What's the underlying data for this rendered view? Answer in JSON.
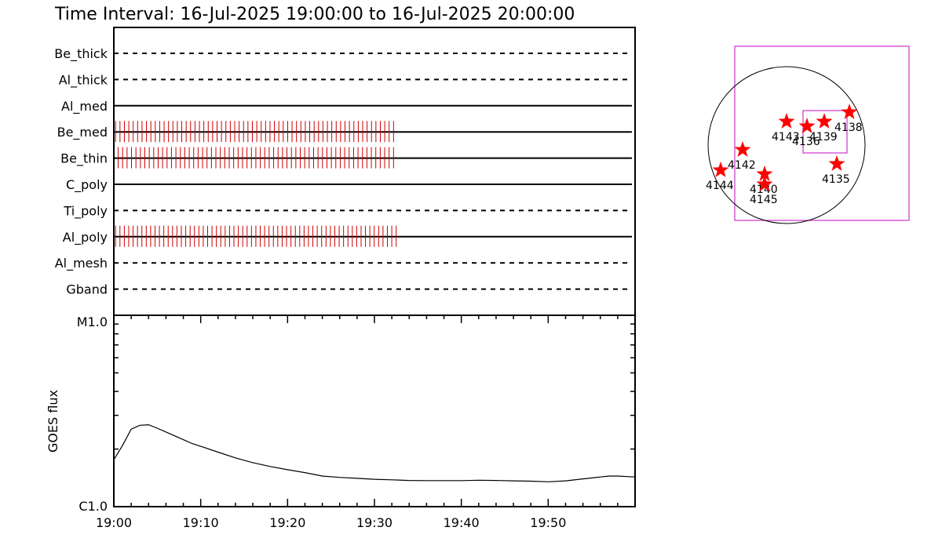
{
  "title": "Time Interval: 16-Jul-2025 19:00:00 to 16-Jul-2025 20:00:00",
  "colors": {
    "axis": "#000000",
    "marks": "#cc0000",
    "star": "#ff0000",
    "fov": "#cc33cc"
  },
  "chart_data": [
    {
      "type": "timeline",
      "x_range": [
        "19:00",
        "20:00"
      ],
      "filters": [
        {
          "name": "Be_thick",
          "line": "dashed",
          "exposures": null
        },
        {
          "name": "Al_thick",
          "line": "dashed",
          "exposures": null
        },
        {
          "name": "Al_med",
          "line": "solid",
          "exposures": null
        },
        {
          "name": "Be_med",
          "line": "solid",
          "exposures": {
            "start_min": 0.2,
            "end_min": 32.2,
            "count": 64
          }
        },
        {
          "name": "Be_thin",
          "line": "solid",
          "exposures": {
            "start_min": 0.5,
            "end_min": 32.2,
            "count": 63
          }
        },
        {
          "name": "C_poly",
          "line": "solid",
          "exposures": null
        },
        {
          "name": "Ti_poly",
          "line": "dashed",
          "exposures": null
        },
        {
          "name": "Al_poly",
          "line": "solid",
          "exposures": {
            "start_min": 0.2,
            "end_min": 32.5,
            "count": 65
          }
        },
        {
          "name": "Al_mesh",
          "line": "dashed",
          "exposures": null
        },
        {
          "name": "Gband",
          "line": "dashed",
          "exposures": null
        }
      ]
    },
    {
      "type": "line",
      "ylabel": "GOES flux",
      "ytick_labels": {
        "top": "M1.0",
        "bottom": "C1.0"
      },
      "ylim": [
        "C1.0",
        "M1.0"
      ],
      "y_unit_note": "log10 fraction between C1.0 (0) and M1.0 (1)",
      "xtick_labels": [
        "19:00",
        "19:10",
        "19:20",
        "19:30",
        "19:40",
        "19:50"
      ],
      "xlim_min": [
        0,
        60
      ],
      "points": [
        [
          0,
          0.245
        ],
        [
          1,
          0.32
        ],
        [
          2,
          0.405
        ],
        [
          3,
          0.425
        ],
        [
          4,
          0.428
        ],
        [
          5,
          0.41
        ],
        [
          6,
          0.39
        ],
        [
          7,
          0.37
        ],
        [
          8,
          0.35
        ],
        [
          9,
          0.33
        ],
        [
          10,
          0.315
        ],
        [
          12,
          0.285
        ],
        [
          14,
          0.255
        ],
        [
          16,
          0.23
        ],
        [
          18,
          0.21
        ],
        [
          20,
          0.193
        ],
        [
          22,
          0.178
        ],
        [
          24,
          0.16
        ],
        [
          26,
          0.153
        ],
        [
          28,
          0.148
        ],
        [
          30,
          0.143
        ],
        [
          32,
          0.14
        ],
        [
          34,
          0.137
        ],
        [
          36,
          0.136
        ],
        [
          38,
          0.136
        ],
        [
          40,
          0.136
        ],
        [
          42,
          0.138
        ],
        [
          44,
          0.137
        ],
        [
          46,
          0.135
        ],
        [
          48,
          0.133
        ],
        [
          50,
          0.13
        ],
        [
          52,
          0.135
        ],
        [
          54,
          0.145
        ],
        [
          56,
          0.155
        ],
        [
          57,
          0.16
        ],
        [
          58,
          0.16
        ],
        [
          60,
          0.155
        ]
      ]
    },
    {
      "type": "scatter",
      "description_of_axes": "solar disk map, arcsec offsets from disk center in units of disk radius",
      "regions": [
        {
          "label": "4143",
          "x": 0.0,
          "y": 0.3
        },
        {
          "label": "4136",
          "x": 0.26,
          "y": 0.24
        },
        {
          "label": "4139",
          "x": 0.48,
          "y": 0.3
        },
        {
          "label": "4138",
          "x": 0.8,
          "y": 0.42
        },
        {
          "label": "4142",
          "x": -0.56,
          "y": -0.06
        },
        {
          "label": "4144",
          "x": -0.84,
          "y": -0.32
        },
        {
          "label": "4140",
          "x": -0.28,
          "y": -0.37
        },
        {
          "label": "4145",
          "x": -0.28,
          "y": -0.5
        },
        {
          "label": "4135",
          "x": 0.64,
          "y": -0.24
        }
      ]
    }
  ]
}
